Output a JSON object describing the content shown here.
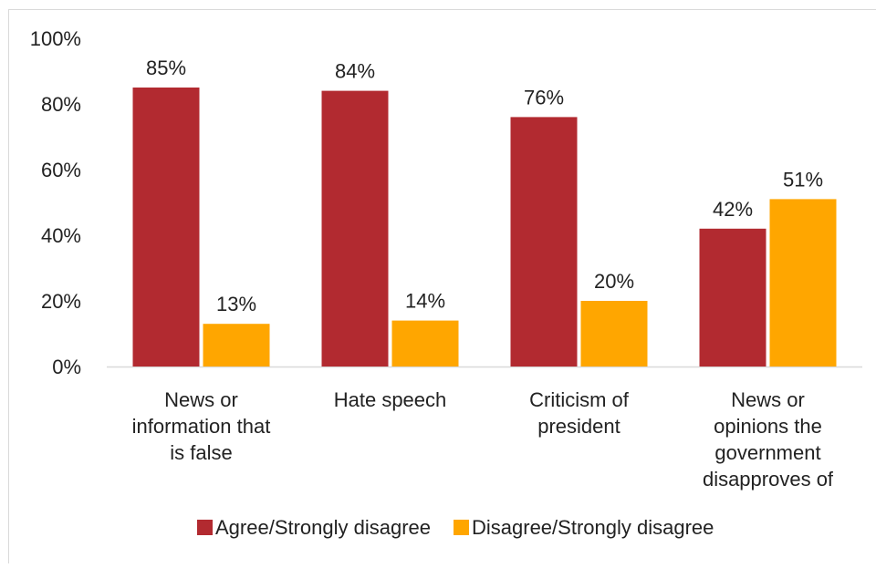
{
  "chart_data": {
    "type": "bar",
    "categories": [
      [
        "News or",
        "information that",
        "is false"
      ],
      [
        "Hate speech"
      ],
      [
        "Criticism of",
        "president"
      ],
      [
        "News or",
        "opinions the",
        "government",
        "disapproves of"
      ]
    ],
    "series": [
      {
        "name": "Agree/Strongly disagree",
        "color": "#b22a30",
        "values": [
          85,
          84,
          76,
          42
        ],
        "labels": [
          "85%",
          "84%",
          "76%",
          "42%"
        ]
      },
      {
        "name": "Disagree/Strongly disagree",
        "color": "#ffa600",
        "values": [
          13,
          14,
          20,
          51
        ],
        "labels": [
          "13%",
          "14%",
          "20%",
          "51%"
        ]
      }
    ],
    "ylim": [
      0,
      100
    ],
    "yticks": [
      "0%",
      "20%",
      "40%",
      "60%",
      "80%",
      "100%"
    ],
    "grid": false,
    "legend_position": "bottom"
  }
}
